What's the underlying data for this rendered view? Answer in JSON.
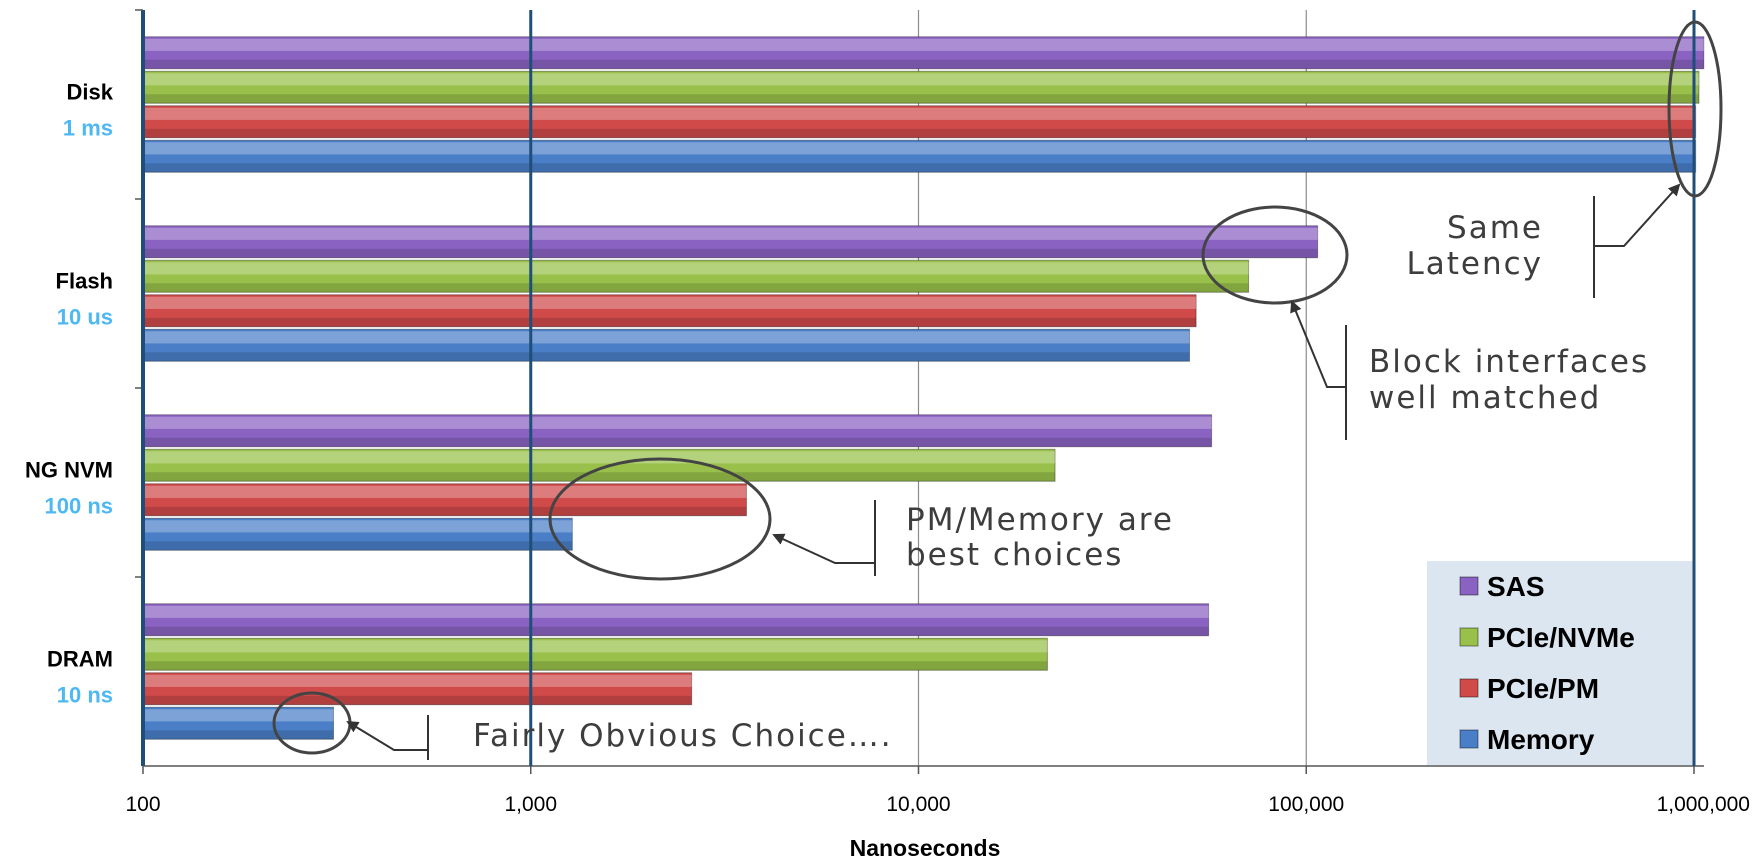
{
  "chart_data": {
    "type": "bar",
    "orientation": "horizontal",
    "x_scale": "log",
    "xlim": [
      100,
      1000000
    ],
    "xlabel": "Nanoseconds",
    "x_ticks": [
      "100",
      "1,000",
      "10,000",
      "100,000",
      "1,000,000"
    ],
    "grid": true,
    "legend_position": "bottom-right",
    "categories": [
      {
        "name": "Disk",
        "latency": "1 ms"
      },
      {
        "name": "Flash",
        "latency": "10 us"
      },
      {
        "name": "NG NVM",
        "latency": "100 ns"
      },
      {
        "name": "DRAM",
        "latency": "10 ns"
      }
    ],
    "series": [
      {
        "name": "SAS",
        "color": "#8a62c2",
        "values": [
          1060000,
          107000,
          57000,
          56000
        ]
      },
      {
        "name": "PCIe/NVMe",
        "color": "#98c04a",
        "values": [
          1030000,
          71000,
          22500,
          21500
        ]
      },
      {
        "name": "PCIe/PM",
        "color": "#d04a4a",
        "values": [
          1010000,
          52000,
          3600,
          2600
        ]
      },
      {
        "name": "Memory",
        "color": "#4a7fc8",
        "values": [
          1010000,
          50000,
          1280,
          310
        ]
      }
    ],
    "annotations": [
      {
        "id": "same-latency",
        "lines": [
          "Same",
          "Latency"
        ]
      },
      {
        "id": "block-interfaces",
        "lines": [
          "Block interfaces",
          "well matched"
        ]
      },
      {
        "id": "pm-memory",
        "lines": [
          "PM/Memory are",
          "best choices"
        ]
      },
      {
        "id": "obvious",
        "lines": [
          "Fairly Obvious Choice…."
        ]
      }
    ]
  }
}
